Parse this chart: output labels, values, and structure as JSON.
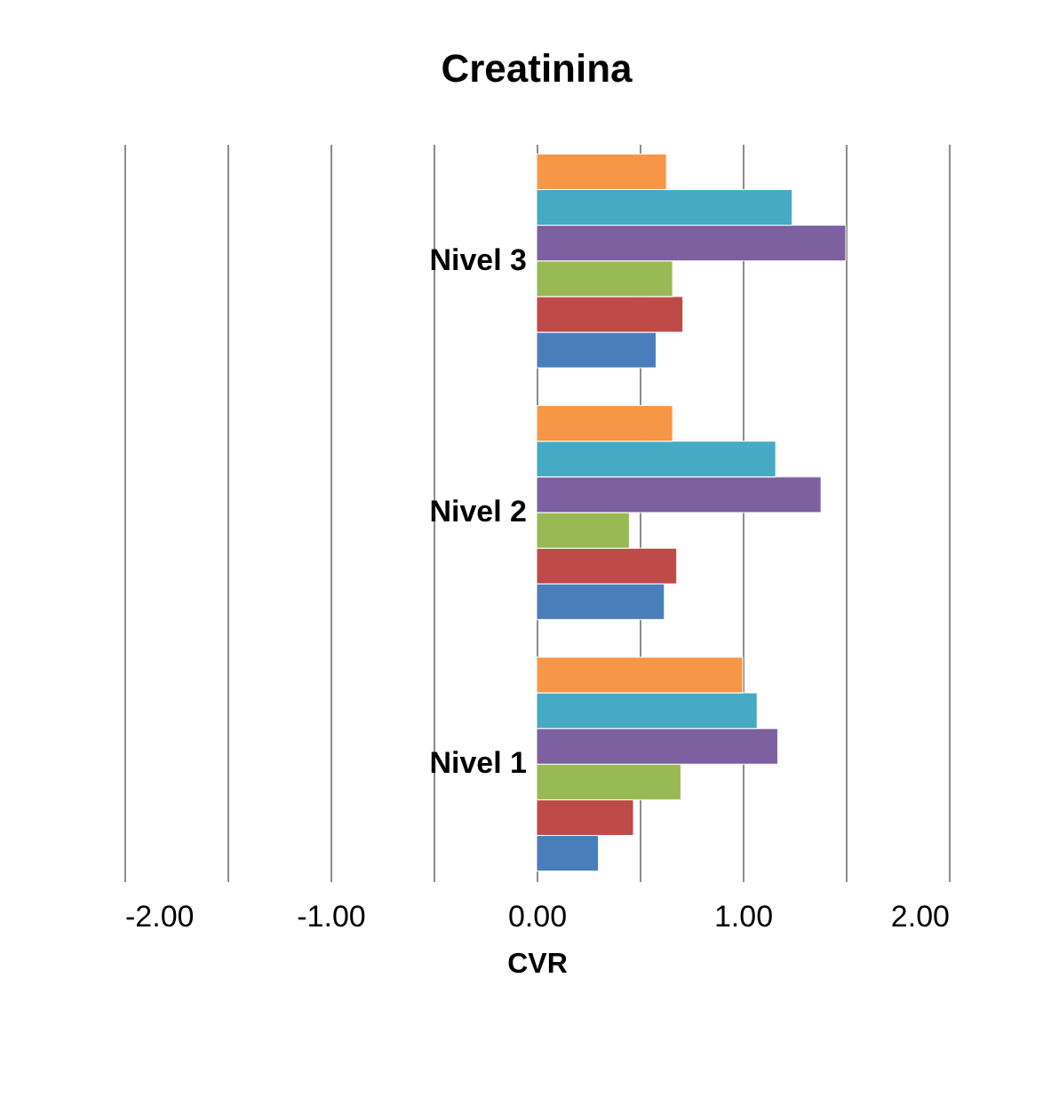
{
  "chart_data": {
    "type": "bar",
    "orientation": "horizontal",
    "title": "Creatinina",
    "xlabel": "CVR",
    "categories": [
      "Nivel 3",
      "Nivel 2",
      "Nivel 1"
    ],
    "series": [
      {
        "color": "#4a7ebb",
        "values": [
          0.58,
          0.62,
          0.3
        ]
      },
      {
        "color": "#be4b48",
        "values": [
          0.71,
          0.68,
          0.47
        ]
      },
      {
        "color": "#98b954",
        "values": [
          0.66,
          0.45,
          0.7
        ]
      },
      {
        "color": "#7d60a0",
        "values": [
          1.5,
          1.38,
          1.17
        ]
      },
      {
        "color": "#46aac5",
        "values": [
          1.24,
          1.16,
          1.07
        ]
      },
      {
        "color": "#f79646",
        "values": [
          0.63,
          0.66,
          1.0
        ]
      }
    ],
    "xlim": [
      -2,
      2
    ],
    "xticks": [
      {
        "value": -2,
        "label": "-2.00"
      },
      {
        "value": -1.5,
        "label": null
      },
      {
        "value": -1,
        "label": "-1.00"
      },
      {
        "value": -0.5,
        "label": null
      },
      {
        "value": 0,
        "label": "0.00"
      },
      {
        "value": 0.5,
        "label": null
      },
      {
        "value": 1,
        "label": "1.00"
      },
      {
        "value": 1.5,
        "label": null
      },
      {
        "value": 2,
        "label": "2.00"
      }
    ],
    "grid": "x",
    "legend": false
  }
}
